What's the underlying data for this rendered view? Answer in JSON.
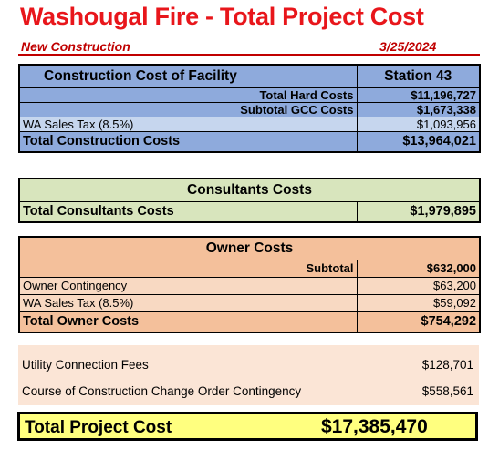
{
  "header": {
    "title": "Washougal Fire - Total Project Cost",
    "subtitle_left": "New Construction",
    "date": "3/25/2024"
  },
  "construction": {
    "heading": "Construction Cost of Facility",
    "station": "Station 43",
    "hard_label": "Total Hard Costs",
    "hard_value": "$11,196,727",
    "gcc_label": "Subtotal GCC Costs",
    "gcc_value": "$1,673,338",
    "tax_label": "WA Sales Tax (8.5%)",
    "tax_value": "$1,093,956",
    "total_label": "Total Construction Costs",
    "total_value": "$13,964,021"
  },
  "consultants": {
    "heading": "Consultants Costs",
    "total_label": "Total Consultants Costs",
    "total_value": "$1,979,895"
  },
  "owner": {
    "heading": "Owner Costs",
    "subtotal_label": "Subtotal",
    "subtotal_value": "$632,000",
    "contingency_label": "Owner Contingency",
    "contingency_value": "$63,200",
    "tax_label": "WA Sales Tax (8.5%)",
    "tax_value": "$59,092",
    "total_label": "Total Owner Costs",
    "total_value": "$754,292"
  },
  "other": {
    "utility_label": "Utility Connection Fees",
    "utility_value": "$128,701",
    "change_label": "Course of Construction Change Order Contingency",
    "change_value": "$558,561"
  },
  "grand": {
    "label": "Total Project Cost",
    "value": "$17,385,470"
  },
  "colors": {
    "title_red": "#e8161b",
    "construction_blue": "#8eaadc",
    "consultants_green": "#d8e5bd",
    "owner_orange": "#f4c09b",
    "other_peach": "#fbe5d6",
    "total_yellow": "#ffff7f"
  }
}
